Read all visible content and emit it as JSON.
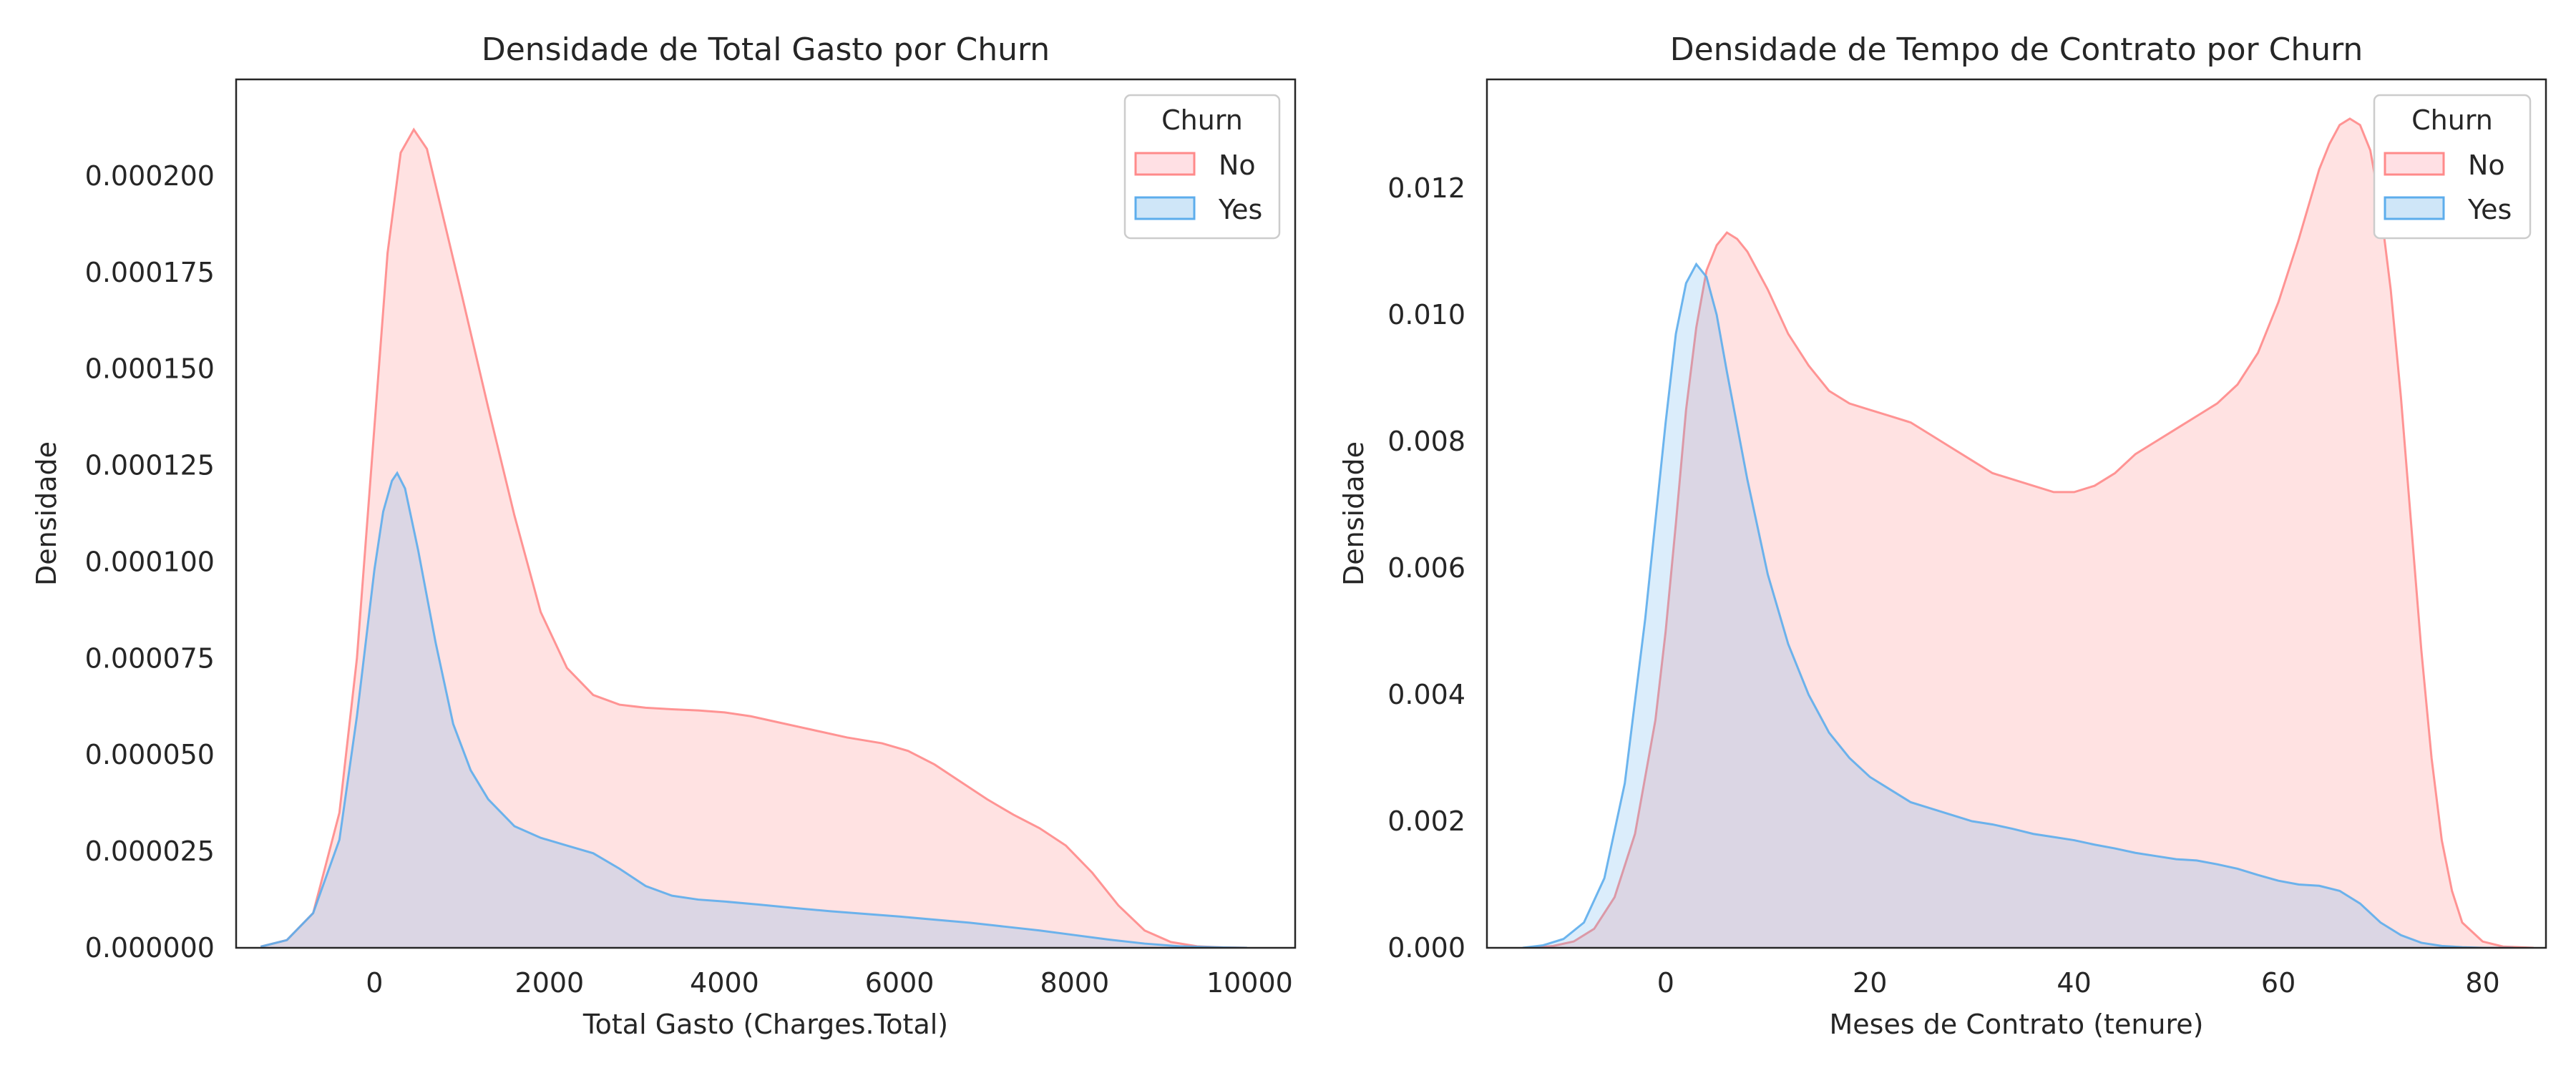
{
  "colors": {
    "no": "#FF8A8A",
    "yes": "#5DADEC",
    "no_fill": "#FFE0E4",
    "yes_fill": "#CFE6F8",
    "overlap_fill": "#E0D6E6"
  },
  "chart_data": [
    {
      "type": "area",
      "title": "Densidade de Total Gasto por Churn",
      "xlabel": "Total Gasto (Charges.Total)",
      "ylabel": "Densidade",
      "xlim": [
        -1580,
        10520
      ],
      "ylim": [
        0,
        0.000225
      ],
      "xticks": [
        "0",
        "2000",
        "4000",
        "6000",
        "8000",
        "10000"
      ],
      "xtick_values": [
        0,
        2000,
        4000,
        6000,
        8000,
        10000
      ],
      "yticks": [
        "0.000000",
        "0.000025",
        "0.000050",
        "0.000075",
        "0.000100",
        "0.000125",
        "0.000150",
        "0.000175",
        "0.000200"
      ],
      "ytick_values": [
        0,
        2.5e-05,
        5e-05,
        7.5e-05,
        0.0001,
        0.000125,
        0.00015,
        0.000175,
        0.0002
      ],
      "grid": false,
      "legend": {
        "title": "Churn",
        "placement": "top-right",
        "entries": [
          "No",
          "Yes"
        ]
      },
      "series": [
        {
          "name": "No",
          "color_key": "no",
          "x": [
            -1300,
            -1000,
            -700,
            -400,
            -200,
            0,
            150,
            300,
            450,
            600,
            800,
            1000,
            1300,
            1600,
            1900,
            2200,
            2500,
            2800,
            3100,
            3400,
            3700,
            4000,
            4300,
            4600,
            5000,
            5400,
            5800,
            6100,
            6400,
            6700,
            7000,
            7300,
            7600,
            7900,
            8200,
            8500,
            8800,
            9100,
            9400,
            9700,
            9970
          ],
          "y": [
            3e-07,
            2e-06,
            9e-06,
            3.5e-05,
            7.5e-05,
            0.000135,
            0.00018,
            0.000206,
            0.000212,
            0.000207,
            0.000188,
            0.000169,
            0.00014,
            0.000112,
            8.7e-05,
            7.25e-05,
            6.55e-05,
            6.3e-05,
            6.22e-05,
            6.18e-05,
            6.15e-05,
            6.1e-05,
            6e-05,
            5.85e-05,
            5.65e-05,
            5.45e-05,
            5.3e-05,
            5.1e-05,
            4.75e-05,
            4.3e-05,
            3.85e-05,
            3.45e-05,
            3.1e-05,
            2.65e-05,
            1.95e-05,
            1.1e-05,
            4.5e-06,
            1.5e-06,
            4e-07,
            1e-07,
            0
          ]
        },
        {
          "name": "Yes",
          "color_key": "yes",
          "x": [
            -1300,
            -1000,
            -700,
            -400,
            -200,
            0,
            100,
            200,
            260,
            350,
            500,
            700,
            900,
            1100,
            1300,
            1600,
            1900,
            2200,
            2500,
            2800,
            3100,
            3400,
            3700,
            4000,
            4400,
            4800,
            5200,
            5600,
            6000,
            6400,
            6800,
            7200,
            7600,
            8000,
            8400,
            8800,
            9200,
            9700,
            9970
          ],
          "y": [
            3e-07,
            2e-06,
            9e-06,
            2.8e-05,
            6e-05,
            9.8e-05,
            0.000113,
            0.000121,
            0.000123,
            0.000119,
            0.000103,
            7.9e-05,
            5.8e-05,
            4.6e-05,
            3.85e-05,
            3.15e-05,
            2.85e-05,
            2.65e-05,
            2.45e-05,
            2.05e-05,
            1.6e-05,
            1.35e-05,
            1.25e-05,
            1.2e-05,
            1.12e-05,
            1.03e-05,
            9.5e-06,
            8.8e-06,
            8.1e-06,
            7.3e-06,
            6.5e-06,
            5.5e-06,
            4.5e-06,
            3.3e-06,
            2.1e-06,
            1.1e-06,
            4e-07,
            1e-07,
            0
          ]
        }
      ]
    },
    {
      "type": "area",
      "title": "Densidade de Tempo de Contrato por Churn",
      "xlabel": "Meses de Contrato (tenure)",
      "ylabel": "Densidade",
      "xlim": [
        -17.5,
        86.2
      ],
      "ylim": [
        0,
        0.01372
      ],
      "xticks": [
        "0",
        "20",
        "40",
        "60",
        "80"
      ],
      "xtick_values": [
        0,
        20,
        40,
        60,
        80
      ],
      "yticks": [
        "0.000",
        "0.002",
        "0.004",
        "0.006",
        "0.008",
        "0.010",
        "0.012"
      ],
      "ytick_values": [
        0,
        0.002,
        0.004,
        0.006,
        0.008,
        0.01,
        0.012
      ],
      "grid": false,
      "legend": {
        "title": "Churn",
        "placement": "top-right",
        "entries": [
          "No",
          "Yes"
        ]
      },
      "series": [
        {
          "name": "No",
          "color_key": "no",
          "x": [
            -13,
            -11,
            -9,
            -7,
            -5,
            -3,
            -1,
            0,
            1,
            2,
            3,
            4,
            5,
            6,
            7,
            8,
            10,
            12,
            14,
            16,
            18,
            20,
            22,
            24,
            26,
            28,
            30,
            32,
            34,
            36,
            38,
            40,
            42,
            44,
            46,
            48,
            50,
            52,
            54,
            56,
            58,
            60,
            62,
            64,
            65,
            66,
            67,
            68,
            69,
            70,
            71,
            72,
            73,
            74,
            75,
            76,
            77,
            78,
            80,
            82,
            85
          ],
          "y": [
            0,
            3e-05,
            0.0001,
            0.0003,
            0.0008,
            0.0018,
            0.0036,
            0.005,
            0.0067,
            0.0085,
            0.0098,
            0.0107,
            0.0111,
            0.0113,
            0.0112,
            0.011,
            0.0104,
            0.0097,
            0.0092,
            0.0088,
            0.0086,
            0.0085,
            0.0084,
            0.0083,
            0.0081,
            0.0079,
            0.0077,
            0.0075,
            0.0074,
            0.0073,
            0.0072,
            0.0072,
            0.0073,
            0.0075,
            0.0078,
            0.008,
            0.0082,
            0.0084,
            0.0086,
            0.0089,
            0.0094,
            0.0102,
            0.0112,
            0.0123,
            0.0127,
            0.013,
            0.0131,
            0.013,
            0.0126,
            0.0117,
            0.0104,
            0.0087,
            0.0067,
            0.0047,
            0.003,
            0.0017,
            0.0009,
            0.0004,
            0.0001,
            2e-05,
            0
          ]
        },
        {
          "name": "Yes",
          "color_key": "yes",
          "x": [
            -14,
            -12,
            -10,
            -8,
            -6,
            -4,
            -2,
            0,
            1,
            2,
            3,
            4,
            5,
            6,
            8,
            10,
            12,
            14,
            16,
            18,
            20,
            22,
            24,
            26,
            28,
            30,
            32,
            34,
            36,
            38,
            40,
            42,
            44,
            46,
            48,
            50,
            52,
            54,
            56,
            58,
            60,
            62,
            64,
            66,
            68,
            70,
            72,
            74,
            76,
            78,
            80,
            83
          ],
          "y": [
            0,
            4e-05,
            0.00014,
            0.0004,
            0.0011,
            0.0026,
            0.0052,
            0.0083,
            0.0097,
            0.0105,
            0.0108,
            0.0106,
            0.01,
            0.0091,
            0.0074,
            0.0059,
            0.0048,
            0.004,
            0.0034,
            0.003,
            0.0027,
            0.0025,
            0.0023,
            0.0022,
            0.0021,
            0.002,
            0.00195,
            0.00188,
            0.0018,
            0.00175,
            0.0017,
            0.00163,
            0.00157,
            0.0015,
            0.00145,
            0.0014,
            0.00138,
            0.00132,
            0.00125,
            0.00115,
            0.00106,
            0.001,
            0.00098,
            0.0009,
            0.0007,
            0.0004,
            0.0002,
            8e-05,
            3e-05,
            1e-05,
            0,
            0
          ]
        }
      ]
    }
  ]
}
